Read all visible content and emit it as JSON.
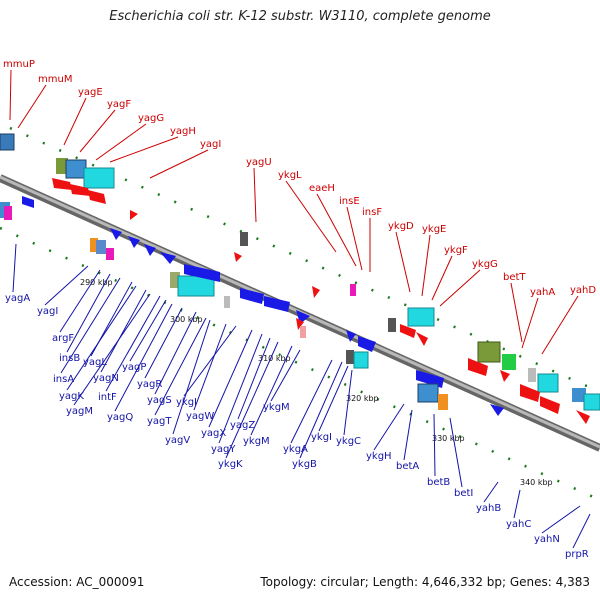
{
  "title": "Escherichia coli str. K-12 substr. W3110, complete genome",
  "accession": "Accession: AC_000091",
  "topology": "Topology: circular; Length: 4,646,332 bp; Genes: 4,383",
  "colors": {
    "forward_label": "#cc0000",
    "reverse_label": "#1414a8",
    "forward_gene": "#ee1111",
    "reverse_gene": "#1a1ae6",
    "backbone": "#8c8c8c"
  },
  "ticks": [
    "290 kbp",
    "300 kbp",
    "310 kbp",
    "320 kbp",
    "330 kbp",
    "340 kbp"
  ],
  "forward_genes": [
    "mmuP",
    "mmuM",
    "yagE",
    "yagF",
    "yagG",
    "yagH",
    "yagI",
    "yagU",
    "ykgL",
    "eaeH",
    "insE",
    "insF",
    "ykgD",
    "ykgE",
    "ykgF",
    "ykgG",
    "betT",
    "yahA",
    "yahD"
  ],
  "reverse_genes": [
    "yagA",
    "yagI",
    "argF",
    "insB",
    "insA",
    "yagL",
    "yagK",
    "yagN",
    "yagM",
    "intF",
    "yagP",
    "yagQ",
    "yagR",
    "yagS",
    "yagT",
    "yagV",
    "yagW",
    "ykgI",
    "yagX",
    "yagY",
    "yagZ",
    "ykgK",
    "ykgM",
    "ykgM",
    "ykgA",
    "ykgB",
    "ykgI",
    "ykgC",
    "ykgH",
    "betA",
    "betB",
    "betI",
    "yahB",
    "yahC",
    "yahN",
    "prpR"
  ]
}
